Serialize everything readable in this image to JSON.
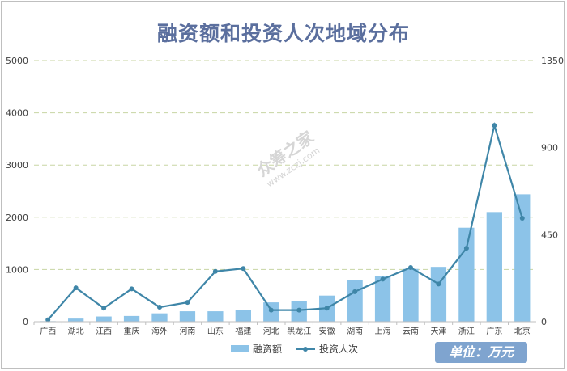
{
  "chart_data": {
    "type": "bar",
    "title": "融资额和投资人次地域分布",
    "categories": [
      "广西",
      "湖北",
      "江西",
      "重庆",
      "海外",
      "河南",
      "山东",
      "福建",
      "河北",
      "黑龙江",
      "安徽",
      "湖南",
      "上海",
      "云南",
      "天津",
      "浙江",
      "广东",
      "北京"
    ],
    "series": [
      {
        "name": "融资额",
        "type": "bar",
        "axis": "left",
        "values": [
          10,
          60,
          100,
          110,
          160,
          200,
          200,
          230,
          370,
          400,
          500,
          800,
          870,
          1010,
          1050,
          1800,
          2100,
          2440
        ]
      },
      {
        "name": "投资人次",
        "type": "line",
        "axis": "right",
        "values": [
          10,
          175,
          70,
          170,
          75,
          100,
          260,
          275,
          60,
          60,
          70,
          155,
          220,
          280,
          195,
          380,
          1015,
          535
        ]
      }
    ],
    "y_left": {
      "min": 0,
      "max": 5000,
      "ticks": [
        0,
        1000,
        2000,
        3000,
        4000,
        5000
      ]
    },
    "y_right": {
      "min": 0,
      "max": 1350,
      "ticks": [
        0,
        450,
        900,
        1350
      ]
    },
    "grid": true,
    "legend_position": "bottom",
    "colors": {
      "bar": "#8cc3e8",
      "line": "#3f86a8",
      "grid": "#c8d5a3",
      "title": "#5b6f9e",
      "badge": "#7fa4cf"
    }
  },
  "unit_label": "单位：万元",
  "watermark": {
    "text": "众筹之家",
    "url": "www.zczj.com"
  }
}
